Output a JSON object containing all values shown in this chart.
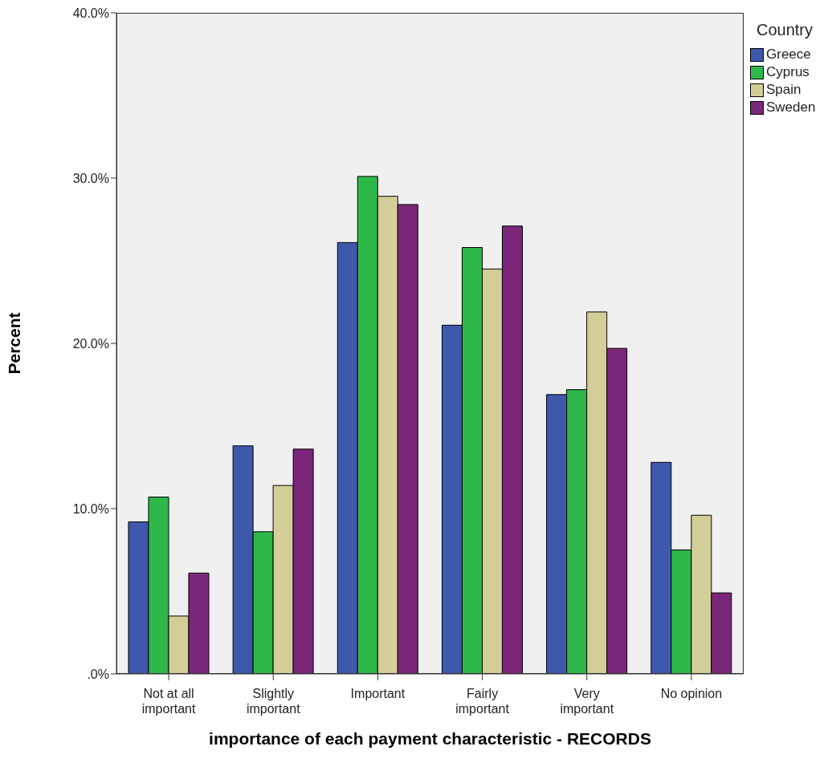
{
  "chart_data": {
    "type": "bar",
    "xlabel": "importance of each payment characteristic - RECORDS",
    "ylabel": "Percent",
    "legend_title": "Country",
    "legend": "top right",
    "categories": [
      "Not at all important",
      "Slightly important",
      "Important",
      "Fairly important",
      "Very important",
      "No opinion"
    ],
    "series": [
      {
        "name": "Greece",
        "color": "#3e58ac",
        "values": [
          9.2,
          13.8,
          26.1,
          21.1,
          16.9,
          12.8
        ]
      },
      {
        "name": "Cyprus",
        "color": "#2fb84a",
        "values": [
          10.7,
          8.6,
          30.1,
          25.8,
          17.2,
          7.5
        ]
      },
      {
        "name": "Spain",
        "color": "#d3ce97",
        "values": [
          3.5,
          11.4,
          28.9,
          24.5,
          21.9,
          9.6
        ]
      },
      {
        "name": "Sweden",
        "color": "#7b2779",
        "values": [
          6.1,
          13.6,
          28.4,
          27.1,
          19.7,
          4.9
        ]
      }
    ],
    "ylim": [
      0,
      40
    ],
    "yticks": [
      {
        "value": 0,
        "label": ".0%"
      },
      {
        "value": 10,
        "label": "10.0%"
      },
      {
        "value": 20,
        "label": "20.0%"
      },
      {
        "value": 30,
        "label": "30.0%"
      },
      {
        "value": 40,
        "label": "40.0%"
      }
    ],
    "grid": false
  }
}
